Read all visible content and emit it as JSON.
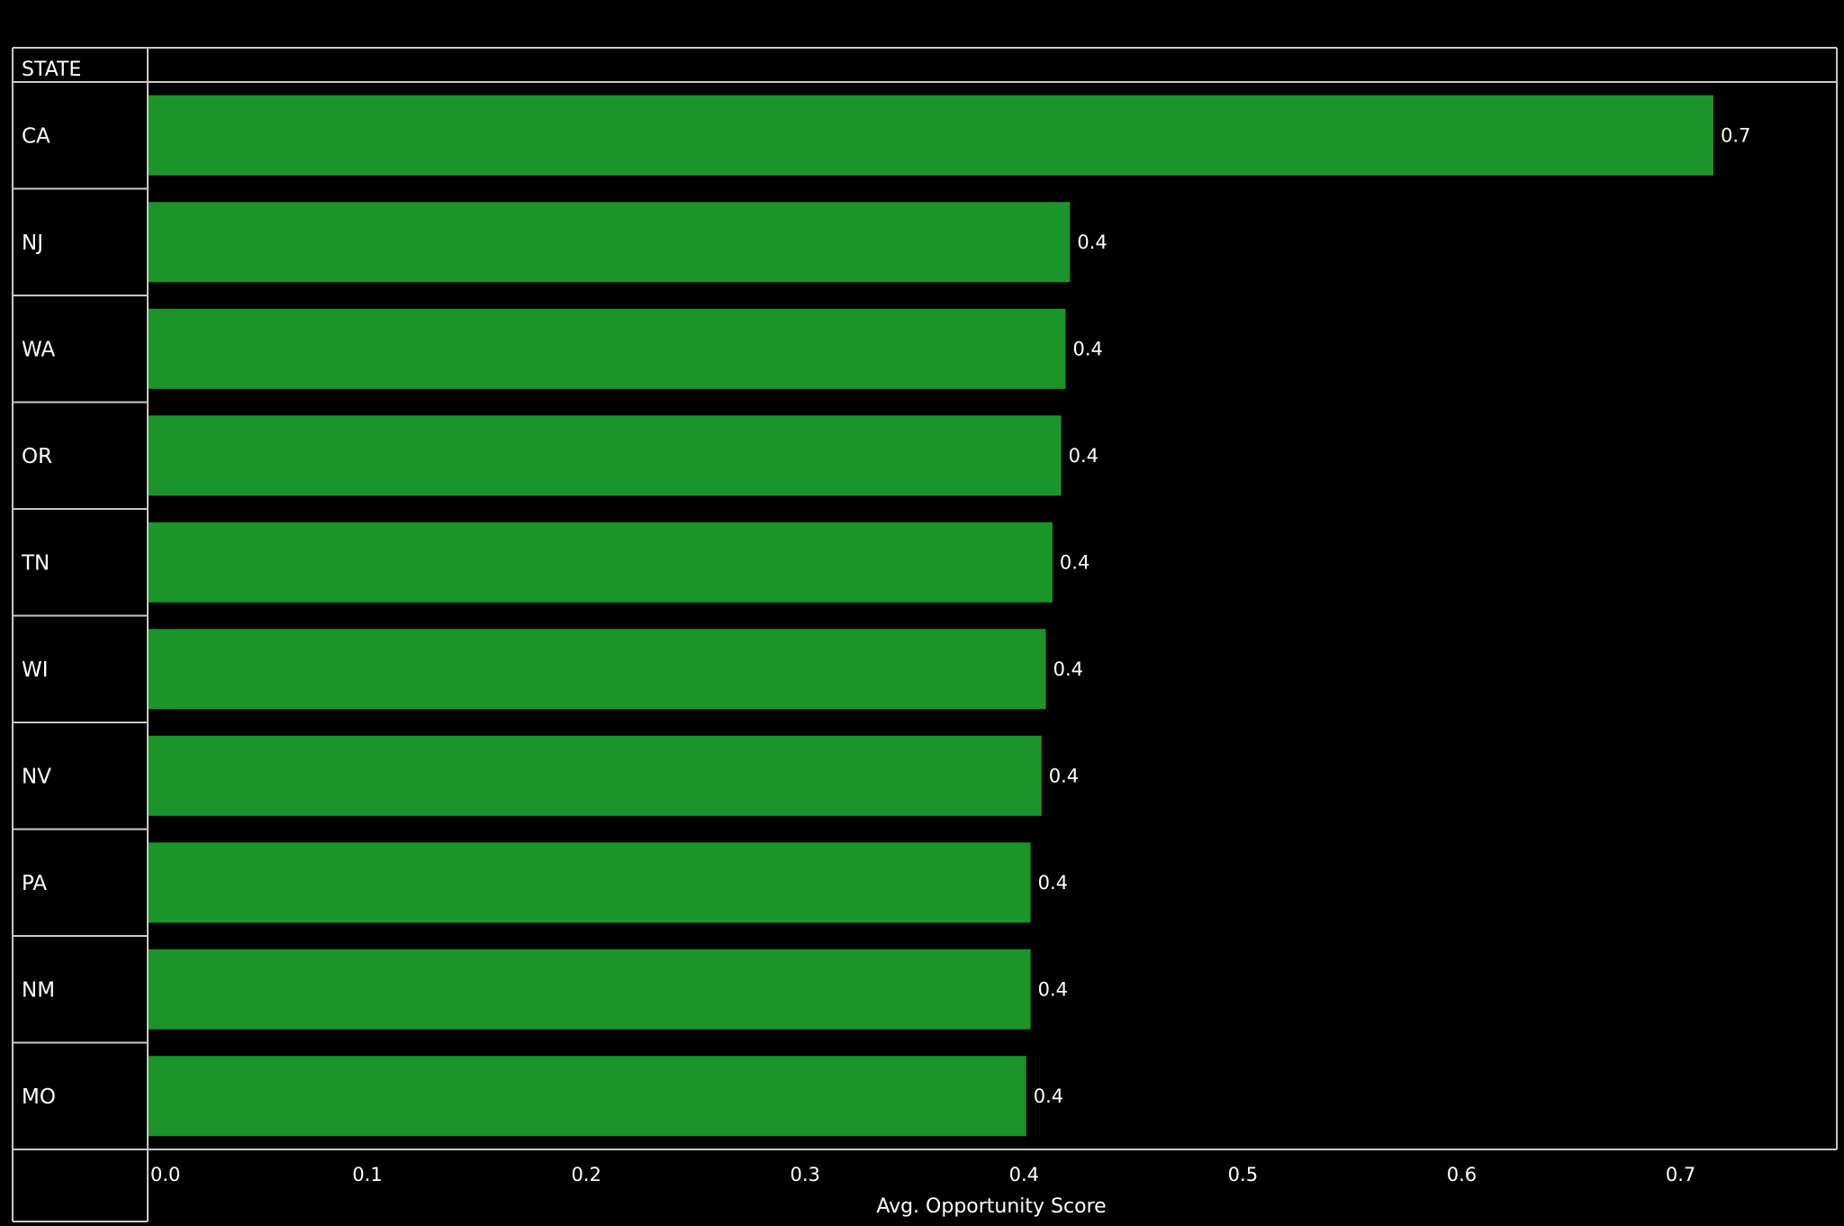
{
  "chart_data": {
    "type": "bar",
    "orientation": "horizontal",
    "row_header": "STATE",
    "categories": [
      "CA",
      "NJ",
      "WA",
      "OR",
      "TN",
      "WI",
      "NV",
      "PA",
      "NM",
      "MO"
    ],
    "values": [
      0.715,
      0.421,
      0.419,
      0.417,
      0.413,
      0.41,
      0.408,
      0.403,
      0.403,
      0.401
    ],
    "value_labels": [
      "0.7",
      "0.4",
      "0.4",
      "0.4",
      "0.4",
      "0.4",
      "0.4",
      "0.4",
      "0.4",
      "0.4"
    ],
    "xlabel": "Avg. Opportunity Score",
    "xlim": [
      0,
      0.7715
    ],
    "xticks": [
      0.0,
      0.1,
      0.2,
      0.3,
      0.4,
      0.5,
      0.6,
      0.7
    ],
    "xtick_labels": [
      "0.0",
      "0.1",
      "0.2",
      "0.3",
      "0.4",
      "0.5",
      "0.6",
      "0.7"
    ],
    "grid": false,
    "colors": {
      "bar": "#1b942a",
      "background": "#000000",
      "border": "#c8c8c8",
      "text": "#ffffff"
    }
  }
}
